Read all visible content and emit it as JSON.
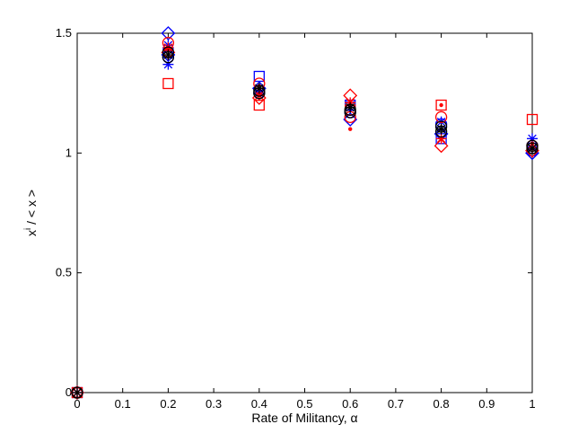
{
  "chart_data": {
    "type": "scatter",
    "title": "",
    "xlabel": "Rate of Militancy, α",
    "ylabel": "x^i / < x >",
    "ylabel_parts": {
      "base": "x",
      "sup": "i",
      "rest": " / < x >"
    },
    "xlim": [
      0,
      1
    ],
    "ylim": [
      0,
      1.5
    ],
    "xticks": [
      "0",
      "0.1",
      "0.2",
      "0.3",
      "0.4",
      "0.5",
      "0.6",
      "0.7",
      "0.8",
      "0.9",
      "1"
    ],
    "yticks": [
      "0",
      "0.5",
      "1",
      "1.5"
    ],
    "grid": false,
    "legend": "none",
    "series": [
      {
        "color": "#0000ff",
        "marker": "diamond",
        "points": [
          [
            0,
            0
          ],
          [
            0.2,
            1.5
          ],
          [
            0.2,
            1.41
          ],
          [
            0.4,
            1.27
          ],
          [
            0.6,
            1.14
          ],
          [
            0.8,
            1.08
          ],
          [
            1,
            1.0
          ]
        ]
      },
      {
        "color": "#0000ff",
        "marker": "square",
        "points": [
          [
            0,
            0
          ],
          [
            0.2,
            1.42
          ],
          [
            0.4,
            1.32
          ],
          [
            0.6,
            1.2
          ],
          [
            0.8,
            1.06
          ],
          [
            1,
            1.02
          ]
        ]
      },
      {
        "color": "#0000ff",
        "marker": "circle",
        "points": [
          [
            0,
            0
          ],
          [
            0.2,
            1.4
          ],
          [
            0.4,
            1.25
          ],
          [
            0.6,
            1.17
          ],
          [
            0.8,
            1.12
          ],
          [
            1,
            1.01
          ]
        ]
      },
      {
        "color": "#0000ff",
        "marker": "star",
        "points": [
          [
            0,
            0
          ],
          [
            0.2,
            1.37
          ],
          [
            0.2,
            1.45
          ],
          [
            0.4,
            1.25
          ],
          [
            0.6,
            1.2
          ],
          [
            0.8,
            1.13
          ],
          [
            1,
            1.06
          ]
        ]
      },
      {
        "color": "#0000ff",
        "marker": "dot",
        "points": [
          [
            0,
            0
          ],
          [
            0.2,
            1.43
          ],
          [
            0.4,
            1.26
          ],
          [
            0.6,
            1.18
          ],
          [
            0.8,
            1.1
          ],
          [
            1,
            1.02
          ]
        ]
      },
      {
        "color": "#ff0000",
        "marker": "diamond",
        "points": [
          [
            0,
            0
          ],
          [
            0.2,
            1.42
          ],
          [
            0.4,
            1.23
          ],
          [
            0.6,
            1.24
          ],
          [
            0.8,
            1.03
          ],
          [
            1,
            1.01
          ]
        ]
      },
      {
        "color": "#ff0000",
        "marker": "square",
        "points": [
          [
            0,
            0
          ],
          [
            0.2,
            1.29
          ],
          [
            0.4,
            1.2
          ],
          [
            0.6,
            1.18
          ],
          [
            0.8,
            1.2
          ],
          [
            1,
            1.14
          ]
        ]
      },
      {
        "color": "#ff0000",
        "marker": "circle",
        "points": [
          [
            0,
            0
          ],
          [
            0.2,
            1.46
          ],
          [
            0.4,
            1.29
          ],
          [
            0.6,
            1.15
          ],
          [
            0.8,
            1.15
          ],
          [
            1,
            1.03
          ]
        ]
      },
      {
        "color": "#ff0000",
        "marker": "star",
        "points": [
          [
            0,
            0
          ],
          [
            0.2,
            1.44
          ],
          [
            0.4,
            1.24
          ],
          [
            0.6,
            1.21
          ],
          [
            0.8,
            1.06
          ],
          [
            1,
            1.02
          ]
        ]
      },
      {
        "color": "#ff0000",
        "marker": "dot",
        "points": [
          [
            0,
            0
          ],
          [
            0.2,
            1.43
          ],
          [
            0.4,
            1.28
          ],
          [
            0.6,
            1.1
          ],
          [
            0.8,
            1.2
          ],
          [
            1,
            1.04
          ]
        ]
      },
      {
        "color": "#000000",
        "marker": "circle",
        "points": [
          [
            0,
            0
          ],
          [
            0.2,
            1.42
          ],
          [
            0.4,
            1.26
          ],
          [
            0.6,
            1.18
          ],
          [
            0.8,
            1.11
          ],
          [
            1,
            1.03
          ]
        ]
      },
      {
        "color": "#000000",
        "marker": "star",
        "points": [
          [
            0,
            0
          ],
          [
            0.2,
            1.41
          ],
          [
            0.4,
            1.27
          ],
          [
            0.6,
            1.19
          ],
          [
            0.8,
            1.1
          ],
          [
            1,
            1.02
          ]
        ]
      },
      {
        "color": "#000000",
        "marker": "circle",
        "points": [
          [
            0,
            0
          ],
          [
            0.2,
            1.4
          ],
          [
            0.4,
            1.25
          ],
          [
            0.6,
            1.17
          ],
          [
            0.8,
            1.09
          ],
          [
            1,
            1.02
          ]
        ]
      }
    ]
  }
}
